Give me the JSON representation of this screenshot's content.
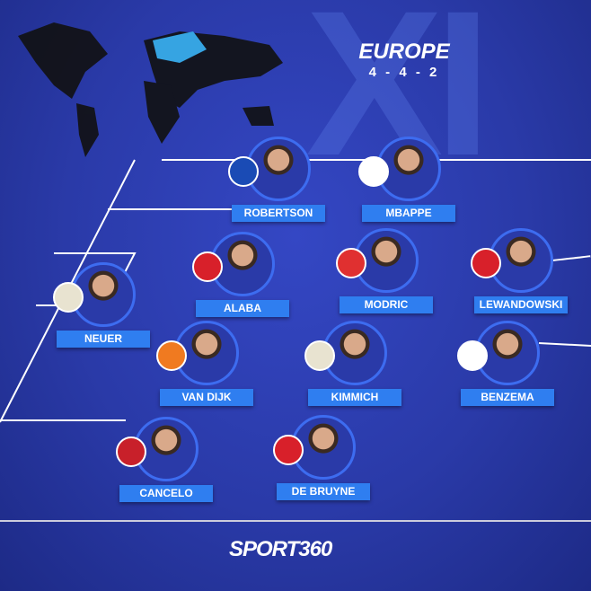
{
  "header": {
    "title": "EUROPE",
    "formation": "4 - 4 - 2",
    "watermark": "XI"
  },
  "players": [
    {
      "name": "ROBERTSON",
      "flag": "scotland",
      "color": "#1a4bb5"
    },
    {
      "name": "MBAPPE",
      "flag": "france",
      "color": "#ffffff"
    },
    {
      "name": "ALABA",
      "flag": "austria",
      "color": "#d8202a"
    },
    {
      "name": "MODRIC",
      "flag": "croatia",
      "color": "#e03030"
    },
    {
      "name": "LEWANDOWSKI",
      "flag": "poland",
      "color": "#d8202a"
    },
    {
      "name": "NEUER",
      "flag": "germany",
      "color": "#e8e3d0"
    },
    {
      "name": "VAN DIJK",
      "flag": "netherlands",
      "color": "#f07a20"
    },
    {
      "name": "KIMMICH",
      "flag": "germany",
      "color": "#e8e3d0"
    },
    {
      "name": "BENZEMA",
      "flag": "france",
      "color": "#ffffff"
    },
    {
      "name": "CANCELO",
      "flag": "portugal",
      "color": "#c8202a"
    },
    {
      "name": "DE BRUYNE",
      "flag": "belgium",
      "color": "#d8202a"
    }
  ],
  "logo": {
    "text": "SPORT360"
  }
}
